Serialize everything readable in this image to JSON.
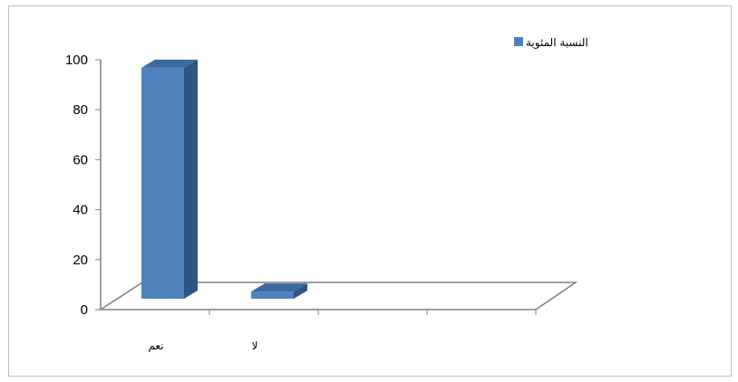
{
  "chart_data": {
    "type": "bar",
    "categories": [
      "نعم",
      "لا"
    ],
    "series": [
      {
        "name": "النسبة المئوية",
        "values": [
          97,
          3
        ]
      }
    ],
    "yticks": [
      0,
      20,
      40,
      60,
      80,
      100
    ],
    "ylim": [
      0,
      100
    ],
    "grid": false,
    "legend": "top-right",
    "colors": {
      "bar_front": "#4f81bd",
      "bar_side": "#2f5583",
      "bar_top": "#3b6aa3",
      "axis": "#7f7f7f"
    }
  }
}
